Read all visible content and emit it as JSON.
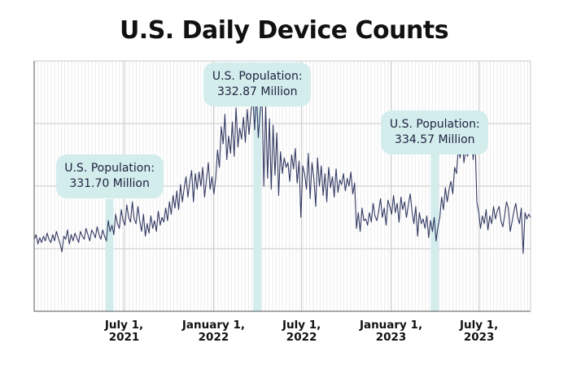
{
  "chart_data": {
    "type": "line",
    "title": "U.S. Daily Device Counts",
    "xlabel": "",
    "ylabel": "",
    "y_tick_labels_shown": false,
    "x_tick_labels": [
      {
        "date": "2021-07-01",
        "line1": "July 1,",
        "line2": "2021"
      },
      {
        "date": "2022-01-01",
        "line1": "January 1,",
        "line2": "2022"
      },
      {
        "date": "2022-07-01",
        "line1": "July 1,",
        "line2": "2022"
      },
      {
        "date": "2023-01-01",
        "line1": "January 1,",
        "line2": "2023"
      },
      {
        "date": "2023-07-01",
        "line1": "July 1,",
        "line2": "2023"
      }
    ],
    "grid": true,
    "line_color": "#333a63",
    "annotations": [
      {
        "date": "2021-06-01",
        "line1": "U.S. Population:",
        "line2": "331.70 Million"
      },
      {
        "date": "2022-04-01",
        "line1": "U.S. Population:",
        "line2": "332.87 Million"
      },
      {
        "date": "2023-04-01",
        "line1": "U.S. Population:",
        "line2": "334.57 Million"
      }
    ],
    "annotation_color": "#d3ecec",
    "series": [
      {
        "x_start": "2020-12-28",
        "x_end": "2023-10-15",
        "values": [
          46,
          49,
          43,
          47,
          44,
          48,
          45,
          50,
          46,
          44,
          49,
          45,
          51,
          47,
          43,
          38,
          48,
          46,
          52,
          43,
          49,
          45,
          50,
          47,
          44,
          51,
          48,
          46,
          53,
          49,
          45,
          52,
          50,
          47,
          54,
          49,
          46,
          52,
          48,
          45,
          58,
          51,
          55,
          49,
          62,
          56,
          53,
          65,
          58,
          55,
          68,
          60,
          57,
          70,
          59,
          56,
          67,
          58,
          51,
          62,
          48,
          56,
          50,
          61,
          53,
          58,
          51,
          64,
          55,
          60,
          57,
          66,
          58,
          70,
          62,
          74,
          66,
          77,
          65,
          81,
          70,
          79,
          86,
          73,
          83,
          90,
          70,
          88,
          78,
          89,
          80,
          92,
          73,
          84,
          95,
          78,
          86,
          75,
          85,
          103,
          92,
          118,
          107,
          126,
          97,
          112,
          101,
          121,
          99,
          130,
          105,
          117,
          110,
          124,
          108,
          129,
          113,
          127,
          138,
          116,
          140,
          111,
          127,
          138,
          80,
          132,
          85,
          123,
          78,
          119,
          87,
          114,
          74,
          102,
          88,
          98,
          92,
          95,
          83,
          100,
          91,
          104,
          82,
          96,
          60,
          93,
          88,
          78,
          101,
          72,
          95,
          85,
          67,
          98,
          80,
          93,
          74,
          88,
          70,
          92,
          79,
          86,
          73,
          91,
          76,
          84,
          81,
          88,
          77,
          85,
          80,
          89,
          75,
          82,
          53,
          63,
          51,
          66,
          58,
          59,
          55,
          63,
          57,
          69,
          61,
          58,
          64,
          72,
          60,
          66,
          55,
          71,
          67,
          62,
          74,
          63,
          69,
          57,
          73,
          65,
          70,
          60,
          68,
          75,
          64,
          56,
          67,
          48,
          63,
          56,
          59,
          53,
          61,
          47,
          58,
          51,
          60,
          45,
          54,
          60,
          73,
          65,
          79,
          70,
          78,
          83,
          75,
          92,
          88,
          104,
          98,
          112,
          95,
          103,
          99,
          107,
          116,
          97,
          111,
          70,
          63,
          53,
          61,
          56,
          65,
          52,
          61,
          56,
          67,
          59,
          64,
          67,
          58,
          54,
          61,
          70,
          66,
          51,
          57,
          64,
          69,
          60,
          56,
          66,
          37,
          63,
          59,
          62,
          60
        ]
      }
    ]
  },
  "colors": {
    "background": "#ffffff",
    "grid": "#c9c9c9",
    "axis": "#555555",
    "text": "#111111"
  }
}
